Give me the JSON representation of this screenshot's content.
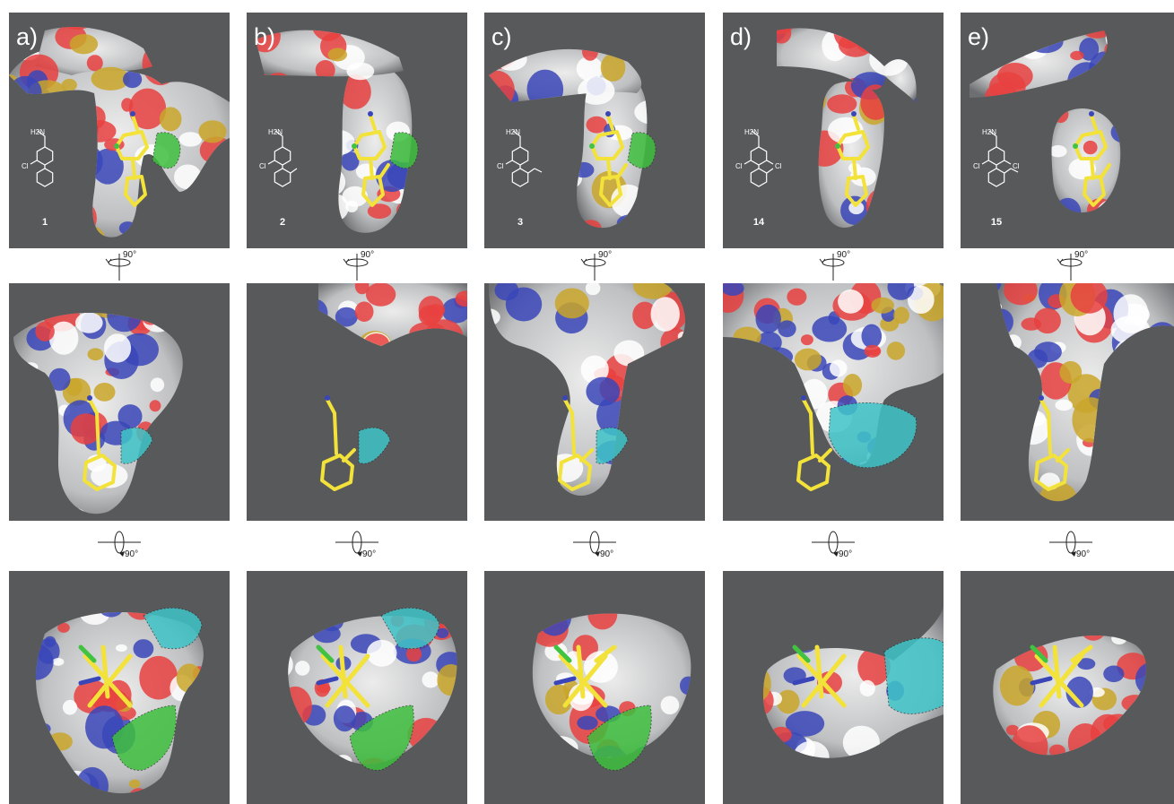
{
  "columns": [
    {
      "label": "a)",
      "compound": "1",
      "substituents": [
        "H2N",
        "Cl"
      ]
    },
    {
      "label": "b)",
      "compound": "2",
      "substituents": [
        "H2N",
        "Cl"
      ]
    },
    {
      "label": "c)",
      "compound": "3",
      "substituents": [
        "H2N",
        "Cl"
      ]
    },
    {
      "label": "d)",
      "compound": "14",
      "substituents": [
        "H2N",
        "Cl",
        "Cl"
      ]
    },
    {
      "label": "e)",
      "compound": "15",
      "substituents": [
        "H2N",
        "Cl",
        "Cl"
      ]
    }
  ],
  "rotation_top": "90°",
  "rotation_bottom": "90°",
  "colors": {
    "background": "#58595b",
    "surface": "#bfc0c2",
    "oxygen": "#e8413f",
    "nitrogen": "#3a46b8",
    "sulfur": "#c9a62a",
    "ligand": "#f2e23a",
    "green_patch": "#3fbf3f",
    "cyan_patch": "#3fc4c8"
  }
}
